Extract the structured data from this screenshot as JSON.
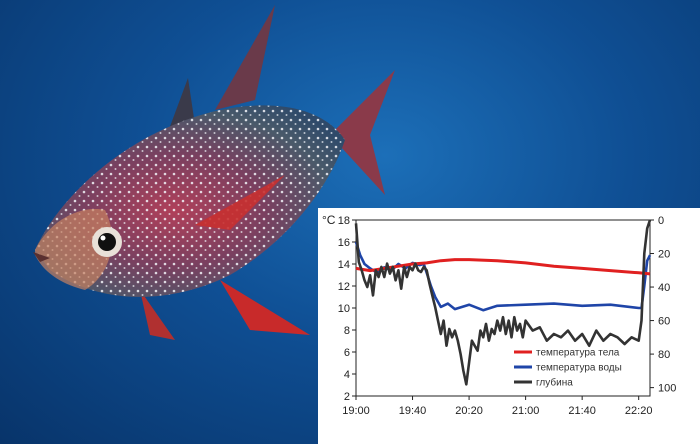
{
  "colors": {
    "body_temp": "#e02020",
    "water_temp": "#1f45a8",
    "depth": "#333333"
  },
  "photo": {
    "subject": "opah-fish",
    "background": "deep-blue-ocean"
  },
  "chart_data": {
    "type": "line",
    "x_ticks": [
      "19:00",
      "19:40",
      "20:20",
      "21:00",
      "21:40",
      "22:20"
    ],
    "y_left": {
      "unit": "°C",
      "ticks": [
        "2",
        "4",
        "6",
        "8",
        "10",
        "12",
        "14",
        "16",
        "18"
      ],
      "range": [
        2,
        18
      ]
    },
    "y_right": {
      "ticks": [
        "0",
        "20",
        "40",
        "60",
        "80",
        "100"
      ],
      "range": [
        0,
        105
      ],
      "inverted": true
    },
    "series": [
      {
        "name": "температура тела",
        "axis": "left",
        "color": "#e02020",
        "x": [
          "19:00",
          "19:10",
          "19:20",
          "19:30",
          "19:40",
          "19:50",
          "20:00",
          "20:10",
          "20:20",
          "20:40",
          "21:00",
          "21:20",
          "21:40",
          "22:00",
          "22:20",
          "22:28"
        ],
        "y": [
          13.6,
          13.4,
          13.6,
          13.8,
          14.0,
          14.1,
          14.3,
          14.4,
          14.4,
          14.3,
          14.1,
          13.8,
          13.6,
          13.4,
          13.2,
          13.1
        ]
      },
      {
        "name": "температура воды",
        "axis": "left",
        "color": "#1f45a8",
        "x": [
          "19:00",
          "19:03",
          "19:06",
          "19:10",
          "19:15",
          "19:20",
          "19:25",
          "19:30",
          "19:35",
          "19:40",
          "19:45",
          "19:48",
          "19:50",
          "19:53",
          "19:56",
          "20:00",
          "20:05",
          "20:10",
          "20:20",
          "20:30",
          "20:40",
          "21:00",
          "21:20",
          "21:40",
          "22:00",
          "22:20",
          "22:22",
          "22:24",
          "22:26",
          "22:28"
        ],
        "y": [
          16.0,
          14.8,
          14.0,
          13.6,
          13.2,
          13.7,
          13.4,
          14.0,
          13.6,
          14.1,
          13.9,
          14.0,
          13.2,
          12.0,
          11.0,
          10.1,
          10.4,
          9.9,
          10.3,
          9.8,
          10.2,
          10.3,
          10.4,
          10.2,
          10.3,
          10.0,
          10.0,
          12.0,
          14.3,
          14.8
        ]
      },
      {
        "name": "глубина",
        "axis": "right",
        "color": "#333333",
        "x": [
          "19:00",
          "19:02",
          "19:04",
          "19:06",
          "19:08",
          "19:10",
          "19:12",
          "19:14",
          "19:16",
          "19:18",
          "19:20",
          "19:22",
          "19:24",
          "19:26",
          "19:28",
          "19:30",
          "19:32",
          "19:34",
          "19:36",
          "19:38",
          "19:40",
          "19:42",
          "19:44",
          "19:46",
          "19:48",
          "19:50",
          "19:52",
          "19:54",
          "19:56",
          "19:58",
          "20:00",
          "20:02",
          "20:04",
          "20:06",
          "20:08",
          "20:10",
          "20:12",
          "20:14",
          "20:16",
          "20:18",
          "20:20",
          "20:22",
          "20:24",
          "20:26",
          "20:28",
          "20:30",
          "20:32",
          "20:34",
          "20:36",
          "20:38",
          "20:40",
          "20:42",
          "20:44",
          "20:46",
          "20:48",
          "20:50",
          "20:52",
          "20:54",
          "20:56",
          "20:58",
          "21:00",
          "21:05",
          "21:10",
          "21:15",
          "21:20",
          "21:25",
          "21:30",
          "21:35",
          "21:40",
          "21:45",
          "21:50",
          "21:55",
          "22:00",
          "22:05",
          "22:10",
          "22:15",
          "22:20",
          "22:22",
          "22:24",
          "22:26",
          "22:28"
        ],
        "y": [
          2,
          25,
          30,
          36,
          40,
          33,
          45,
          30,
          34,
          28,
          34,
          26,
          32,
          28,
          36,
          30,
          41,
          28,
          34,
          28,
          30,
          26,
          30,
          31,
          28,
          30,
          38,
          45,
          52,
          60,
          68,
          60,
          75,
          65,
          70,
          66,
          72,
          80,
          90,
          98,
          85,
          72,
          75,
          78,
          66,
          70,
          62,
          72,
          65,
          68,
          60,
          66,
          58,
          68,
          60,
          70,
          58,
          66,
          62,
          70,
          60,
          66,
          64,
          72,
          68,
          70,
          66,
          72,
          68,
          75,
          66,
          72,
          68,
          70,
          74,
          70,
          72,
          60,
          20,
          5,
          0
        ]
      }
    ],
    "legend_placement": "bottom-right"
  }
}
